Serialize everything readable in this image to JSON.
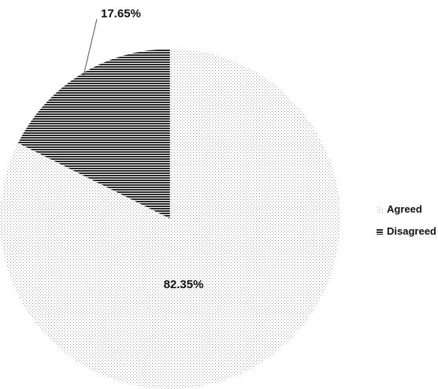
{
  "chart_data": {
    "type": "pie",
    "categories": [
      "Agreed",
      "Disagreed"
    ],
    "values": [
      82.35,
      17.65
    ],
    "unit": "%",
    "data_labels": [
      "82.35%",
      "17.65%"
    ],
    "legend": {
      "position": "right",
      "entries": [
        {
          "label": "Agreed",
          "pattern": "dots"
        },
        {
          "label": "Disagreed",
          "pattern": "horizontal-lines"
        }
      ]
    },
    "colors": {
      "agreed_pattern": "#9a9a9a",
      "disagreed_pattern": "#2a2a2a",
      "background": "#ffffff",
      "leader_line": "#555555"
    }
  }
}
